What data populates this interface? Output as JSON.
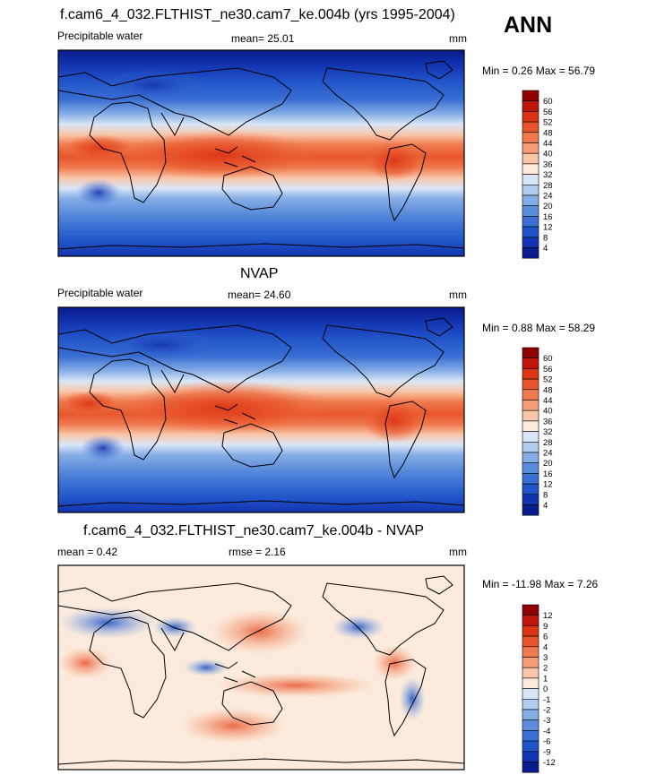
{
  "season": "ANN",
  "panels": [
    {
      "title": "f.cam6_4_032.FLTHIST_ne30.cam7_ke.004b (yrs 1995-2004)",
      "left_label": "Precipitable water",
      "stat_label": "mean=  25.01",
      "units": "mm",
      "minmax": "Min =   0.26 Max =  56.79"
    },
    {
      "title": "NVAP",
      "left_label": "Precipitable water",
      "stat_label": "mean=  24.60",
      "units": "mm",
      "minmax": "Min =   0.88 Max =  58.29"
    },
    {
      "title": "f.cam6_4_032.FLTHIST_ne30.cam7_ke.004b - NVAP",
      "left_label": "mean =   0.42",
      "stat_label": "rmse =   2.16",
      "units": "mm",
      "minmax": "Min = -11.98 Max =   7.26"
    }
  ],
  "chart_data": [
    {
      "type": "heatmap",
      "variable": "Precipitable water",
      "units": "mm",
      "mean": 25.01,
      "min": 0.26,
      "max": 56.79,
      "colorbar_levels": [
        60,
        56,
        52,
        48,
        44,
        40,
        36,
        32,
        28,
        24,
        20,
        16,
        12,
        8,
        4
      ]
    },
    {
      "type": "heatmap",
      "variable": "Precipitable water",
      "units": "mm",
      "mean": 24.6,
      "min": 0.88,
      "max": 58.29,
      "colorbar_levels": [
        60,
        56,
        52,
        48,
        44,
        40,
        36,
        32,
        28,
        24,
        20,
        16,
        12,
        8,
        4
      ]
    },
    {
      "type": "heatmap",
      "units": "mm",
      "mean": 0.42,
      "rmse": 2.16,
      "min": -11.98,
      "max": 7.26,
      "colorbar_levels": [
        12,
        9,
        6,
        4,
        3,
        2,
        1,
        0,
        -1,
        -2,
        -3,
        -4,
        -6,
        -9,
        -12
      ]
    }
  ],
  "colors": {
    "abs_scale": [
      "#8e0000",
      "#c0150b",
      "#dc3514",
      "#e8552c",
      "#f07a4f",
      "#f59e78",
      "#f9c6a8",
      "#fcebdc",
      "#d9e6f7",
      "#b3cdf0",
      "#86aee6",
      "#5b8ddc",
      "#3a6fd3",
      "#2153c9",
      "#1233b0",
      "#081c8c"
    ],
    "diff_scale": [
      "#8e0000",
      "#c0150b",
      "#dc3514",
      "#e8552c",
      "#f07a4f",
      "#f59e78",
      "#f9c6a8",
      "#fcebdc",
      "#d9e6f7",
      "#b3cdf0",
      "#86aee6",
      "#5b8ddc",
      "#3a6fd3",
      "#2153c9",
      "#1233b0",
      "#081c8c"
    ]
  }
}
